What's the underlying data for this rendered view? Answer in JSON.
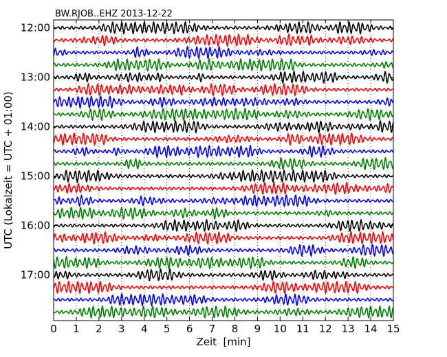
{
  "chart_data": {
    "type": "line",
    "title": "BW.RJOB..EHZ 2013-12-22",
    "xlabel": "Zeit  [min]",
    "ylabel": "UTC (Lokalzeit = UTC + 01:00)",
    "xlim": [
      0,
      15
    ],
    "x_ticks": [
      "0",
      "1",
      "2",
      "3",
      "4",
      "5",
      "6",
      "7",
      "8",
      "9",
      "10",
      "11",
      "12",
      "13",
      "14",
      "15"
    ],
    "y_ticks": [
      "12:00",
      "13:00",
      "14:00",
      "15:00",
      "16:00",
      "17:00"
    ],
    "trace_colors": [
      "#000000",
      "#ff0000",
      "#0000ff",
      "#008000"
    ],
    "minutes_per_trace": 15,
    "num_traces": 24,
    "grid": "dotted vertical lines at each minute"
  }
}
